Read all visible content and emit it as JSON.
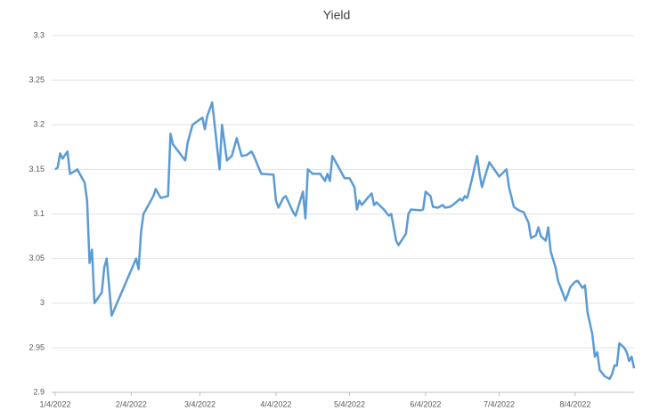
{
  "chart_data": {
    "type": "line",
    "title": "Yield",
    "x": [
      "1/4/2022",
      "1/5/2022",
      "1/6/2022",
      "1/7/2022",
      "1/9/2022",
      "1/10/2022",
      "1/12/2022",
      "1/13/2022",
      "1/16/2022",
      "1/17/2022",
      "1/18/2022",
      "1/19/2022",
      "1/20/2022",
      "1/23/2022",
      "1/24/2022",
      "1/25/2022",
      "1/27/2022",
      "2/6/2022",
      "2/7/2022",
      "2/8/2022",
      "2/9/2022",
      "2/13/2022",
      "2/14/2022",
      "2/16/2022",
      "2/19/2022",
      "2/20/2022",
      "2/21/2022",
      "2/26/2022",
      "2/27/2022",
      "3/1/2022",
      "3/5/2022",
      "3/6/2022",
      "3/7/2022",
      "3/9/2022",
      "3/12/2022",
      "3/13/2022",
      "3/14/2022",
      "3/15/2022",
      "3/17/2022",
      "3/19/2022",
      "3/21/2022",
      "3/23/2022",
      "3/25/2022",
      "3/26/2022",
      "3/29/2022",
      "4/3/2022",
      "4/4/2022",
      "4/5/2022",
      "4/7/2022",
      "4/8/2022",
      "4/11/2022",
      "4/12/2022",
      "4/15/2022",
      "4/16/2022",
      "4/17/2022",
      "4/19/2022",
      "4/22/2022",
      "4/24/2022",
      "4/25/2022",
      "4/26/2022",
      "4/27/2022",
      "5/2/2022",
      "5/4/2022",
      "5/6/2022",
      "5/7/2022",
      "5/8/2022",
      "5/9/2022",
      "5/12/2022",
      "5/13/2022",
      "5/14/2022",
      "5/15/2022",
      "5/18/2022",
      "5/20/2022",
      "5/21/2022",
      "5/23/2022",
      "5/24/2022",
      "5/27/2022",
      "5/28/2022",
      "5/29/2022",
      "6/2/2022",
      "6/3/2022",
      "6/4/2022",
      "6/6/2022",
      "6/7/2022",
      "6/9/2022",
      "6/11/2022",
      "6/12/2022",
      "6/14/2022",
      "6/16/2022",
      "6/18/2022",
      "6/19/2022",
      "6/20/2022",
      "6/21/2022",
      "6/23/2022",
      "6/25/2022",
      "6/26/2022",
      "6/27/2022",
      "6/28/2022",
      "6/30/2022",
      "7/4/2022",
      "7/7/2022",
      "7/8/2022",
      "7/10/2022",
      "7/12/2022",
      "7/14/2022",
      "7/16/2022",
      "7/17/2022",
      "7/19/2022",
      "7/20/2022",
      "7/21/2022",
      "7/23/2022",
      "7/24/2022",
      "7/25/2022",
      "7/27/2022",
      "7/28/2022",
      "7/29/2022",
      "7/31/2022",
      "8/1/2022",
      "8/2/2022",
      "8/4/2022",
      "8/5/2022",
      "8/7/2022",
      "8/8/2022",
      "8/9/2022",
      "8/11/2022",
      "8/12/2022",
      "8/13/2022",
      "8/14/2022",
      "8/16/2022",
      "8/18/2022",
      "8/19/2022",
      "8/20/2022",
      "8/21/2022",
      "8/22/2022",
      "8/24/2022",
      "8/25/2022",
      "8/26/2022",
      "8/27/2022",
      "8/28/2022"
    ],
    "series": [
      {
        "name": "Yield",
        "color": "#5b9bd5",
        "values": [
          3.15,
          3.152,
          3.168,
          3.162,
          3.17,
          3.145,
          3.148,
          3.15,
          3.135,
          3.115,
          3.045,
          3.06,
          3.0,
          3.012,
          3.04,
          3.05,
          2.986,
          3.05,
          3.038,
          3.08,
          3.1,
          3.12,
          3.128,
          3.118,
          3.12,
          3.19,
          3.178,
          3.16,
          3.18,
          3.2,
          3.208,
          3.195,
          3.21,
          3.225,
          3.15,
          3.2,
          3.18,
          3.16,
          3.165,
          3.185,
          3.165,
          3.166,
          3.17,
          3.165,
          3.145,
          3.144,
          3.115,
          3.107,
          3.118,
          3.12,
          3.102,
          3.098,
          3.125,
          3.095,
          3.15,
          3.145,
          3.145,
          3.137,
          3.145,
          3.137,
          3.165,
          3.14,
          3.14,
          3.13,
          3.105,
          3.115,
          3.11,
          3.12,
          3.123,
          3.11,
          3.113,
          3.105,
          3.098,
          3.1,
          3.07,
          3.065,
          3.078,
          3.1,
          3.105,
          3.104,
          3.105,
          3.125,
          3.12,
          3.108,
          3.107,
          3.11,
          3.107,
          3.108,
          3.112,
          3.117,
          3.115,
          3.12,
          3.118,
          3.14,
          3.165,
          3.145,
          3.13,
          3.14,
          3.158,
          3.142,
          3.15,
          3.13,
          3.108,
          3.104,
          3.102,
          3.09,
          3.073,
          3.076,
          3.085,
          3.075,
          3.07,
          3.085,
          3.058,
          3.04,
          3.025,
          3.018,
          3.003,
          3.01,
          3.018,
          3.024,
          3.025,
          3.017,
          3.02,
          2.99,
          2.965,
          2.94,
          2.945,
          2.925,
          2.918,
          2.915,
          2.92,
          2.93,
          2.93,
          2.955,
          2.95,
          2.945,
          2.935,
          2.94,
          2.927
        ]
      }
    ],
    "xlim": [
      "1/4/2022",
      "8/28/2022"
    ],
    "xticks": [
      "1/4/2022",
      "2/4/2022",
      "3/4/2022",
      "4/4/2022",
      "5/4/2022",
      "6/4/2022",
      "7/4/2022",
      "8/4/2022"
    ],
    "ylim": [
      2.9,
      3.3
    ],
    "yticks": [
      2.9,
      2.95,
      3,
      3.05,
      3.1,
      3.15,
      3.2,
      3.25,
      3.3
    ],
    "grid": true
  }
}
